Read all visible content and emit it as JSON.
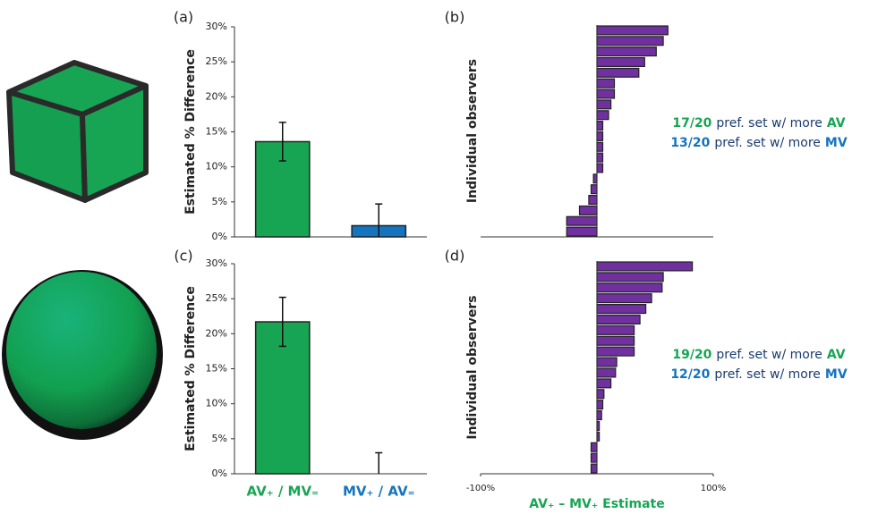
{
  "chart_data": [
    {
      "type": "bar",
      "label": "(a)",
      "y_title": "Estimated % Difference",
      "categories": [
        null,
        null
      ],
      "series": [
        {
          "colors": [
            "#17a553",
            "#1474bf"
          ],
          "values": [
            13.6,
            1.6
          ],
          "errors": [
            2.75,
            3.1
          ]
        }
      ],
      "ylim": [
        0,
        30
      ],
      "yticks": [
        {
          "value": 0,
          "label": "0%"
        },
        {
          "value": 5,
          "label": "5%"
        },
        {
          "value": 10,
          "label": "10%"
        },
        {
          "value": 15,
          "label": "15%"
        },
        {
          "value": 20,
          "label": "20%"
        },
        {
          "value": 25,
          "label": "25%"
        },
        {
          "value": 30,
          "label": "30%"
        }
      ]
    },
    {
      "type": "barh",
      "label": "(b)",
      "y_title": "Individual observers",
      "categories": [
        null,
        null,
        null,
        null,
        null,
        null,
        null,
        null,
        null,
        null,
        null,
        null,
        null,
        null,
        null,
        null,
        null,
        null,
        null,
        null
      ],
      "color": "#7030a0",
      "values": [
        61,
        57,
        51,
        41,
        36,
        15,
        15,
        12,
        10,
        5,
        5,
        5,
        5,
        5,
        -3,
        -5,
        -7,
        -15,
        -26,
        -26
      ],
      "xlim": [
        -100,
        100
      ],
      "annotation_lines": [
        [
          {
            "text": "17/20",
            "color": "#17a553"
          },
          {
            "text": "pref. set w/ more",
            "color": "#1a3c6e"
          },
          {
            "text": "AV",
            "color": "#17a553"
          }
        ],
        [
          {
            "text": "13/20",
            "color": "#1474bf"
          },
          {
            "text": "pref. set w/ more",
            "color": "#1a3c6e"
          },
          {
            "text": "MV",
            "color": "#1474bf"
          }
        ]
      ]
    },
    {
      "type": "bar",
      "label": "(c)",
      "y_title": "Estimated % Difference",
      "categories": [
        "AV₊ / MV₌",
        "MV₊ / AV₌"
      ],
      "category_colors": [
        "#17a553",
        "#1474bf"
      ],
      "series": [
        {
          "colors": [
            "#17a553",
            "#1474bf"
          ],
          "values": [
            21.7,
            0
          ],
          "errors": [
            3.5,
            3.0
          ]
        }
      ],
      "ylim": [
        0,
        30
      ],
      "yticks": [
        {
          "value": 0,
          "label": "0%"
        },
        {
          "value": 5,
          "label": "5%"
        },
        {
          "value": 10,
          "label": "10%"
        },
        {
          "value": 15,
          "label": "15%"
        },
        {
          "value": 20,
          "label": "20%"
        },
        {
          "value": 25,
          "label": "25%"
        },
        {
          "value": 30,
          "label": "30%"
        }
      ]
    },
    {
      "type": "barh",
      "label": "(d)",
      "y_title": "Individual observers",
      "x_title": "AV₊ – MV₊ Estimate",
      "categories": [
        null,
        null,
        null,
        null,
        null,
        null,
        null,
        null,
        null,
        null,
        null,
        null,
        null,
        null,
        null,
        null,
        null,
        null,
        null,
        null
      ],
      "color": "#7030a0",
      "values": [
        82,
        57,
        56,
        47,
        42,
        37,
        32,
        32,
        32,
        17,
        16,
        12,
        6,
        5,
        4,
        2,
        2,
        -5,
        -5,
        -5
      ],
      "xlim": [
        -100,
        100
      ],
      "xticks": [
        {
          "value": -100,
          "label": "-100%"
        },
        {
          "value": 100,
          "label": "100%"
        }
      ],
      "annotation_lines": [
        [
          {
            "text": "19/20",
            "color": "#17a553"
          },
          {
            "text": "pref. set w/ more",
            "color": "#1a3c6e"
          },
          {
            "text": "AV",
            "color": "#17a553"
          }
        ],
        [
          {
            "text": "12/20",
            "color": "#1474bf"
          },
          {
            "text": "pref. set w/ more",
            "color": "#1a3c6e"
          },
          {
            "text": "MV",
            "color": "#1474bf"
          }
        ]
      ]
    }
  ]
}
